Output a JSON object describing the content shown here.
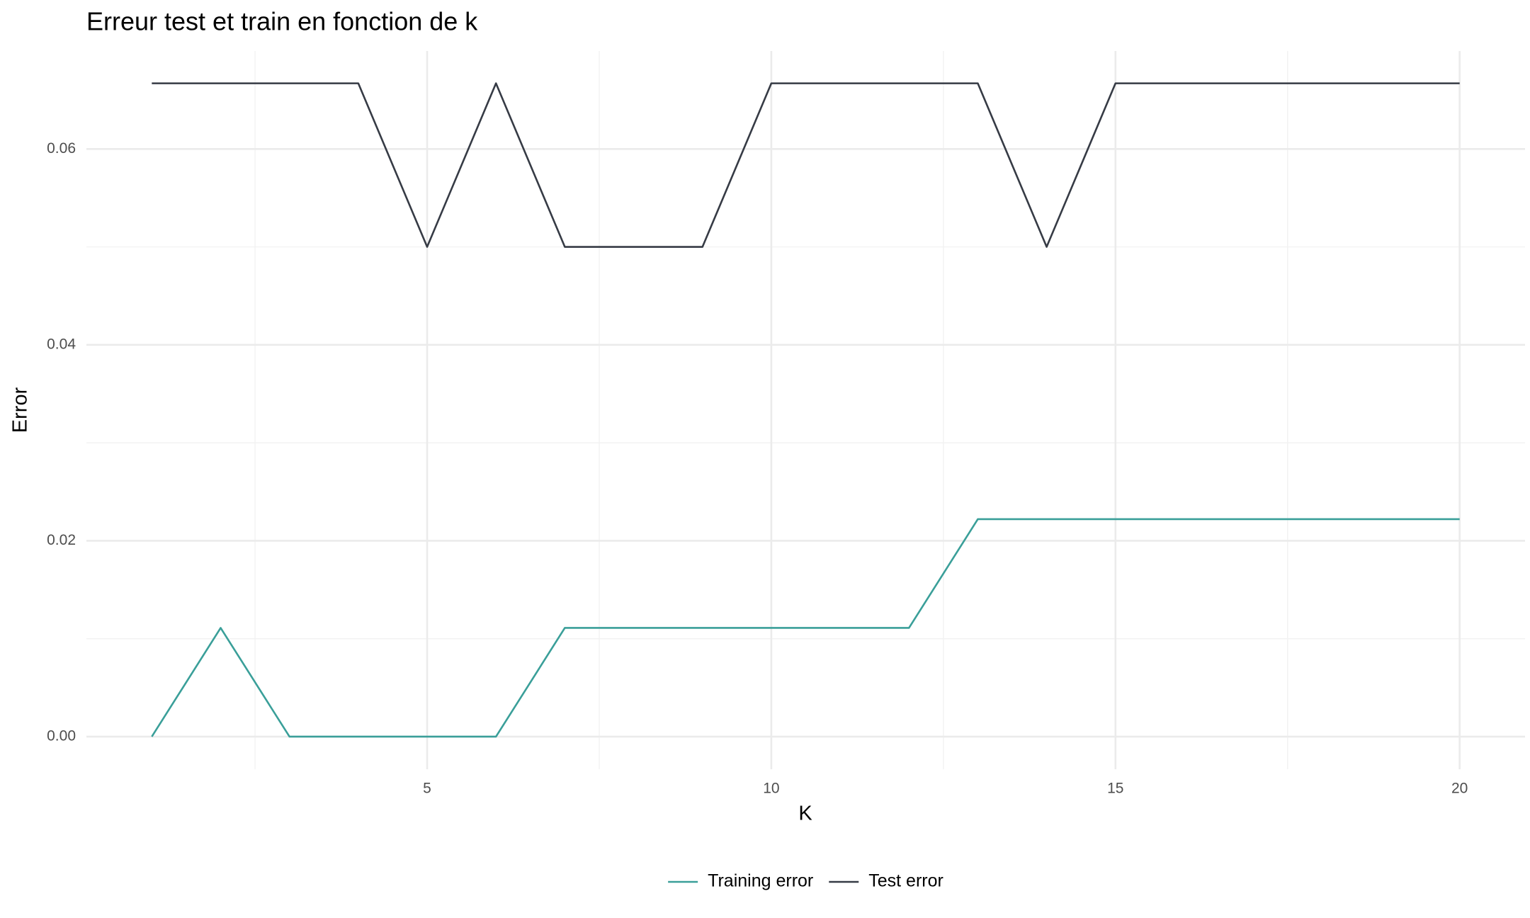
{
  "chart_data": {
    "type": "line",
    "title": "Erreur test et train en fonction de k",
    "x_label": "K",
    "y_label": "Error",
    "x": [
      1,
      2,
      3,
      4,
      5,
      6,
      7,
      8,
      9,
      10,
      11,
      12,
      13,
      14,
      15,
      16,
      17,
      18,
      19,
      20
    ],
    "series": [
      {
        "name": "Training error",
        "color": "#3a9f99",
        "values": [
          0,
          0.0111,
          0,
          0,
          0,
          0,
          0.0111,
          0.0111,
          0.0111,
          0.0111,
          0.0111,
          0.0111,
          0.0222,
          0.0222,
          0.0222,
          0.0222,
          0.0222,
          0.0222,
          0.0222,
          0.0222
        ]
      },
      {
        "name": "Test error",
        "color": "#363b45",
        "values": [
          0.0667,
          0.0667,
          0.0667,
          0.0667,
          0.05,
          0.0667,
          0.05,
          0.05,
          0.05,
          0.0667,
          0.0667,
          0.0667,
          0.0667,
          0.05,
          0.0667,
          0.0667,
          0.0667,
          0.0667,
          0.0667,
          0.0667
        ]
      }
    ],
    "xlim": [
      0.05,
      20.95
    ],
    "ylim": [
      -0.00333,
      0.07
    ],
    "xticks": [
      5,
      10,
      15,
      20
    ],
    "yticks": [
      {
        "value": 0,
        "label": "0.00"
      },
      {
        "value": 0.02,
        "label": "0.02"
      },
      {
        "value": 0.04,
        "label": "0.04"
      },
      {
        "value": 0.06,
        "label": "0.06"
      }
    ],
    "x_minor_ticks": [
      2.5,
      7.5,
      12.5,
      17.5
    ],
    "y_minor_ticks": [
      0.01,
      0.03,
      0.05
    ],
    "grid": true,
    "legend": "bottom"
  }
}
